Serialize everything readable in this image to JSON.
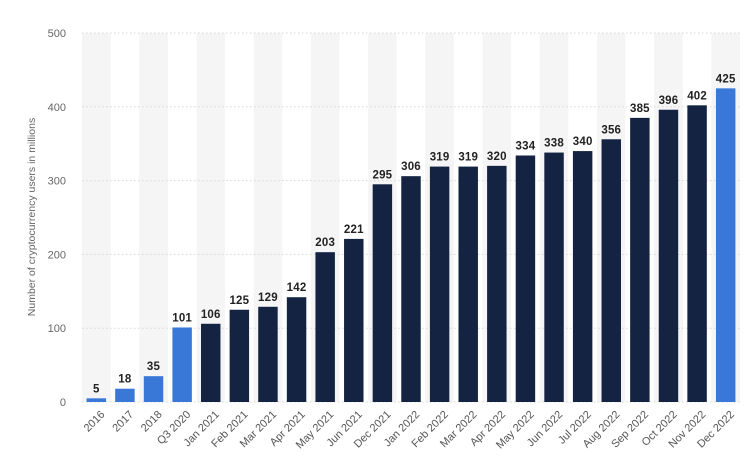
{
  "chart_data": {
    "type": "bar",
    "title": "",
    "xlabel": "",
    "ylabel": "Number of cryptocurrency users in millions",
    "ylim": [
      0,
      500
    ],
    "yticks": [
      0,
      100,
      200,
      300,
      400,
      500
    ],
    "grid": true,
    "categories": [
      "2016",
      "2017",
      "2018",
      "Q3 2020",
      "Jan 2021",
      "Feb 2021",
      "Mar 2021",
      "Apr 2021",
      "May 2021",
      "Jun 2021",
      "Dec 2021",
      "Jan 2022",
      "Feb 2022",
      "Mar 2022",
      "Apr 2022",
      "May 2022",
      "Jun 2022",
      "Jul 2022",
      "Aug 2022",
      "Sep 2022",
      "Oct 2022",
      "Nov 2022",
      "Dec 2022"
    ],
    "values": [
      5,
      18,
      35,
      101,
      106,
      125,
      129,
      142,
      203,
      221,
      295,
      306,
      319,
      319,
      320,
      334,
      338,
      340,
      356,
      385,
      396,
      402,
      425
    ],
    "bar_colors": [
      "#3a78d8",
      "#3a78d8",
      "#3a78d8",
      "#3a78d8",
      "#152342",
      "#152342",
      "#152342",
      "#152342",
      "#152342",
      "#152342",
      "#152342",
      "#152342",
      "#152342",
      "#152342",
      "#152342",
      "#152342",
      "#152342",
      "#152342",
      "#152342",
      "#152342",
      "#152342",
      "#152342",
      "#3a78d8"
    ]
  }
}
